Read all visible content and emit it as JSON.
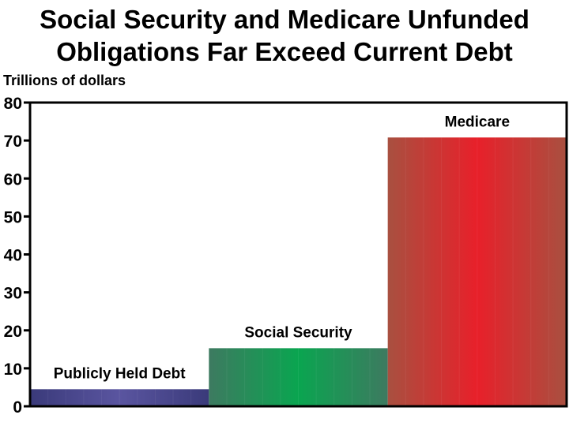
{
  "chart_data": {
    "type": "bar",
    "title": "Social Security and Medicare Unfunded Obligations Far Exceed Current Debt",
    "ylabel": "Trillions of dollars",
    "xlabel": "",
    "ylim": [
      0,
      80
    ],
    "yticks": [
      "0",
      "10",
      "20",
      "30",
      "40",
      "50",
      "60",
      "70",
      "80"
    ],
    "categories": [
      "Publicly Held Debt",
      "Social Security",
      "Medicare"
    ],
    "values": [
      4.5,
      15.3,
      70.8
    ],
    "colors": [
      "#5a55a0",
      "#0aa550",
      "#e8202a"
    ],
    "edge_colors": [
      "#3a3a7a",
      "#3d7a60",
      "#a85040"
    ],
    "grid": false,
    "legend": "none"
  }
}
